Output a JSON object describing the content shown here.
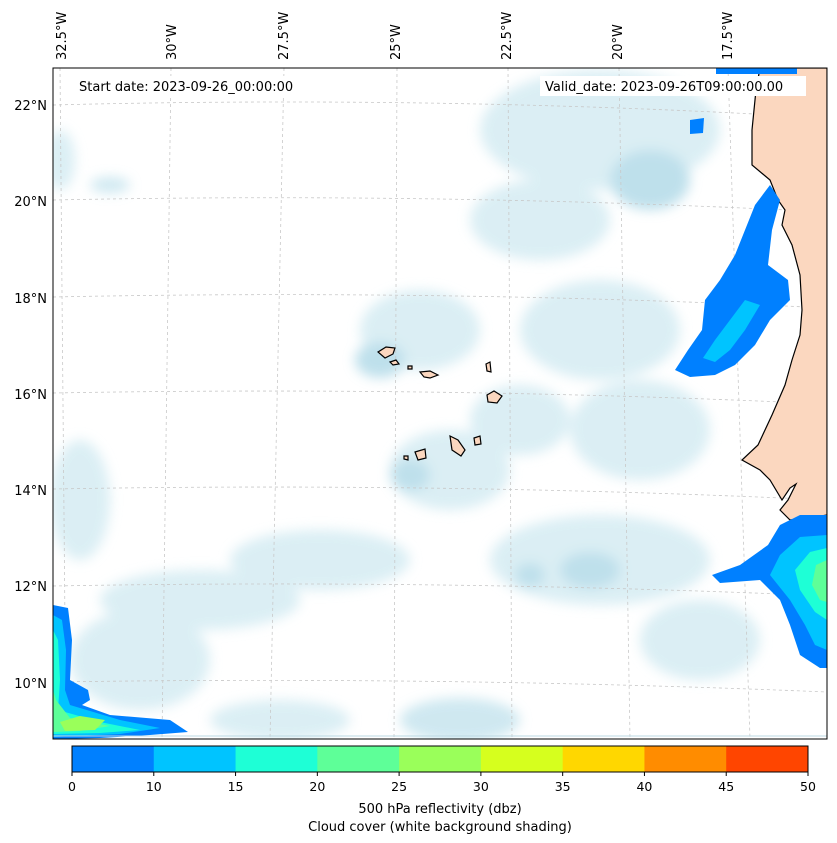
{
  "map": {
    "start_date_label": "Start date: 2023-09-26_00:00:00",
    "valid_date_label": "Valid_date: 2023-09-26T09:00:00.00",
    "longitude_labels": [
      "32.5°W",
      "30°W",
      "27.5°W",
      "25°W",
      "22.5°W",
      "20°W",
      "17.5°W"
    ],
    "latitude_labels": [
      "22°N",
      "20°N",
      "18°N",
      "16°N",
      "14°N",
      "12°N",
      "10°N"
    ],
    "gridlines": true,
    "features": [
      "cape-verde-islands",
      "west-africa-coast"
    ]
  },
  "colorbar": {
    "ticks": [
      "0",
      "10",
      "15",
      "20",
      "25",
      "30",
      "35",
      "40",
      "45",
      "50"
    ],
    "colors": [
      "#0080ff",
      "#00c4ff",
      "#1effd6",
      "#5eff98",
      "#9aff5a",
      "#d6ff1e",
      "#ffd700",
      "#ff8c00",
      "#ff4500"
    ],
    "label_line1": "500 hPa reflectivity (dbz)",
    "label_line2": "Cloud cover (white background shading)"
  },
  "colors": {
    "land": "#fbd7bf",
    "cloud": "#cde8f0",
    "coastline": "#000000",
    "grid": "#c8c8c8"
  }
}
